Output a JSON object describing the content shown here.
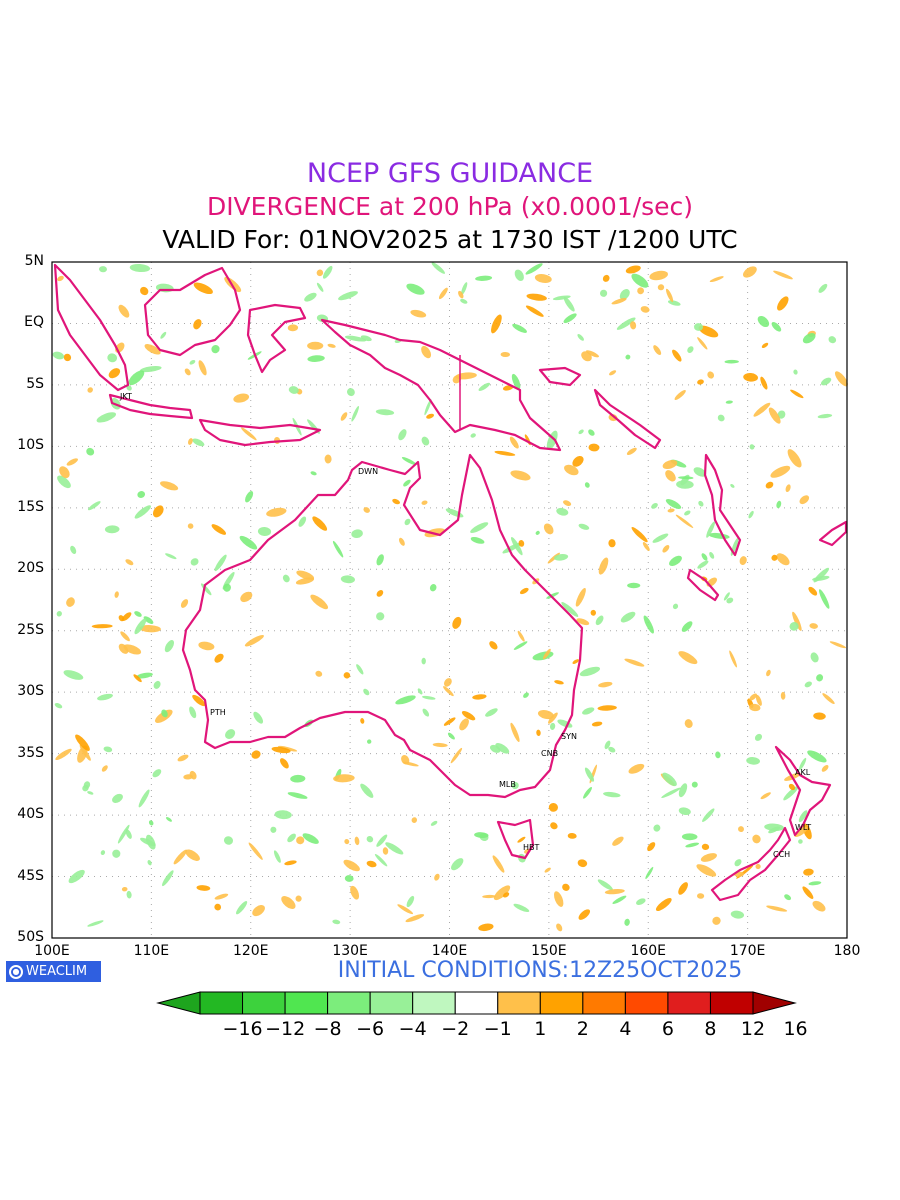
{
  "titles": {
    "line1": "NCEP GFS GUIDANCE",
    "line2": "DIVERGENCE at 200 hPa (x0.0001/sec)",
    "line3": "VALID For: 01NOV2025 at 1730 IST /1200 UTC",
    "line1_color": "#8a2be2",
    "line2_color": "#e0157a"
  },
  "map": {
    "lat_labels": [
      "5N",
      "EQ",
      "5S",
      "10S",
      "15S",
      "20S",
      "25S",
      "30S",
      "35S",
      "40S",
      "45S",
      "50S"
    ],
    "lon_labels": [
      "100E",
      "110E",
      "120E",
      "130E",
      "140E",
      "150E",
      "160E",
      "170E",
      "180"
    ],
    "cities": [
      {
        "code": "JKT",
        "name": "Jakarta"
      },
      {
        "code": "DWN",
        "name": "Darwin"
      },
      {
        "code": "PTH",
        "name": "Perth"
      },
      {
        "code": "SYN",
        "name": "Sydney"
      },
      {
        "code": "CNB",
        "name": "Canberra"
      },
      {
        "code": "MLB",
        "name": "Melbourne"
      },
      {
        "code": "HBT",
        "name": "Hobart"
      },
      {
        "code": "AKL",
        "name": "Auckland"
      },
      {
        "code": "WLT",
        "name": "Wellington"
      },
      {
        "code": "CCH",
        "name": "Christchurch"
      }
    ],
    "coastline_color": "#e0157a",
    "grid": true
  },
  "logo": {
    "icon": "circle-logo-icon",
    "text": "WEACLIM"
  },
  "initial_conditions": "INITIAL CONDITIONS:12Z25OCT2025",
  "colorbar": {
    "labels": [
      "−16",
      "−12",
      "−8",
      "−6",
      "−4",
      "−2",
      "−1",
      "1",
      "2",
      "4",
      "6",
      "8",
      "12",
      "16"
    ],
    "colors": [
      "#1ea51e",
      "#23b823",
      "#3dd23d",
      "#50e650",
      "#7ced7c",
      "#98f098",
      "#bff7bf",
      "#ffffff",
      "#ffc04a",
      "#ffa200",
      "#ff7a00",
      "#ff4a00",
      "#e01e1e",
      "#c00000",
      "#a00000"
    ]
  }
}
